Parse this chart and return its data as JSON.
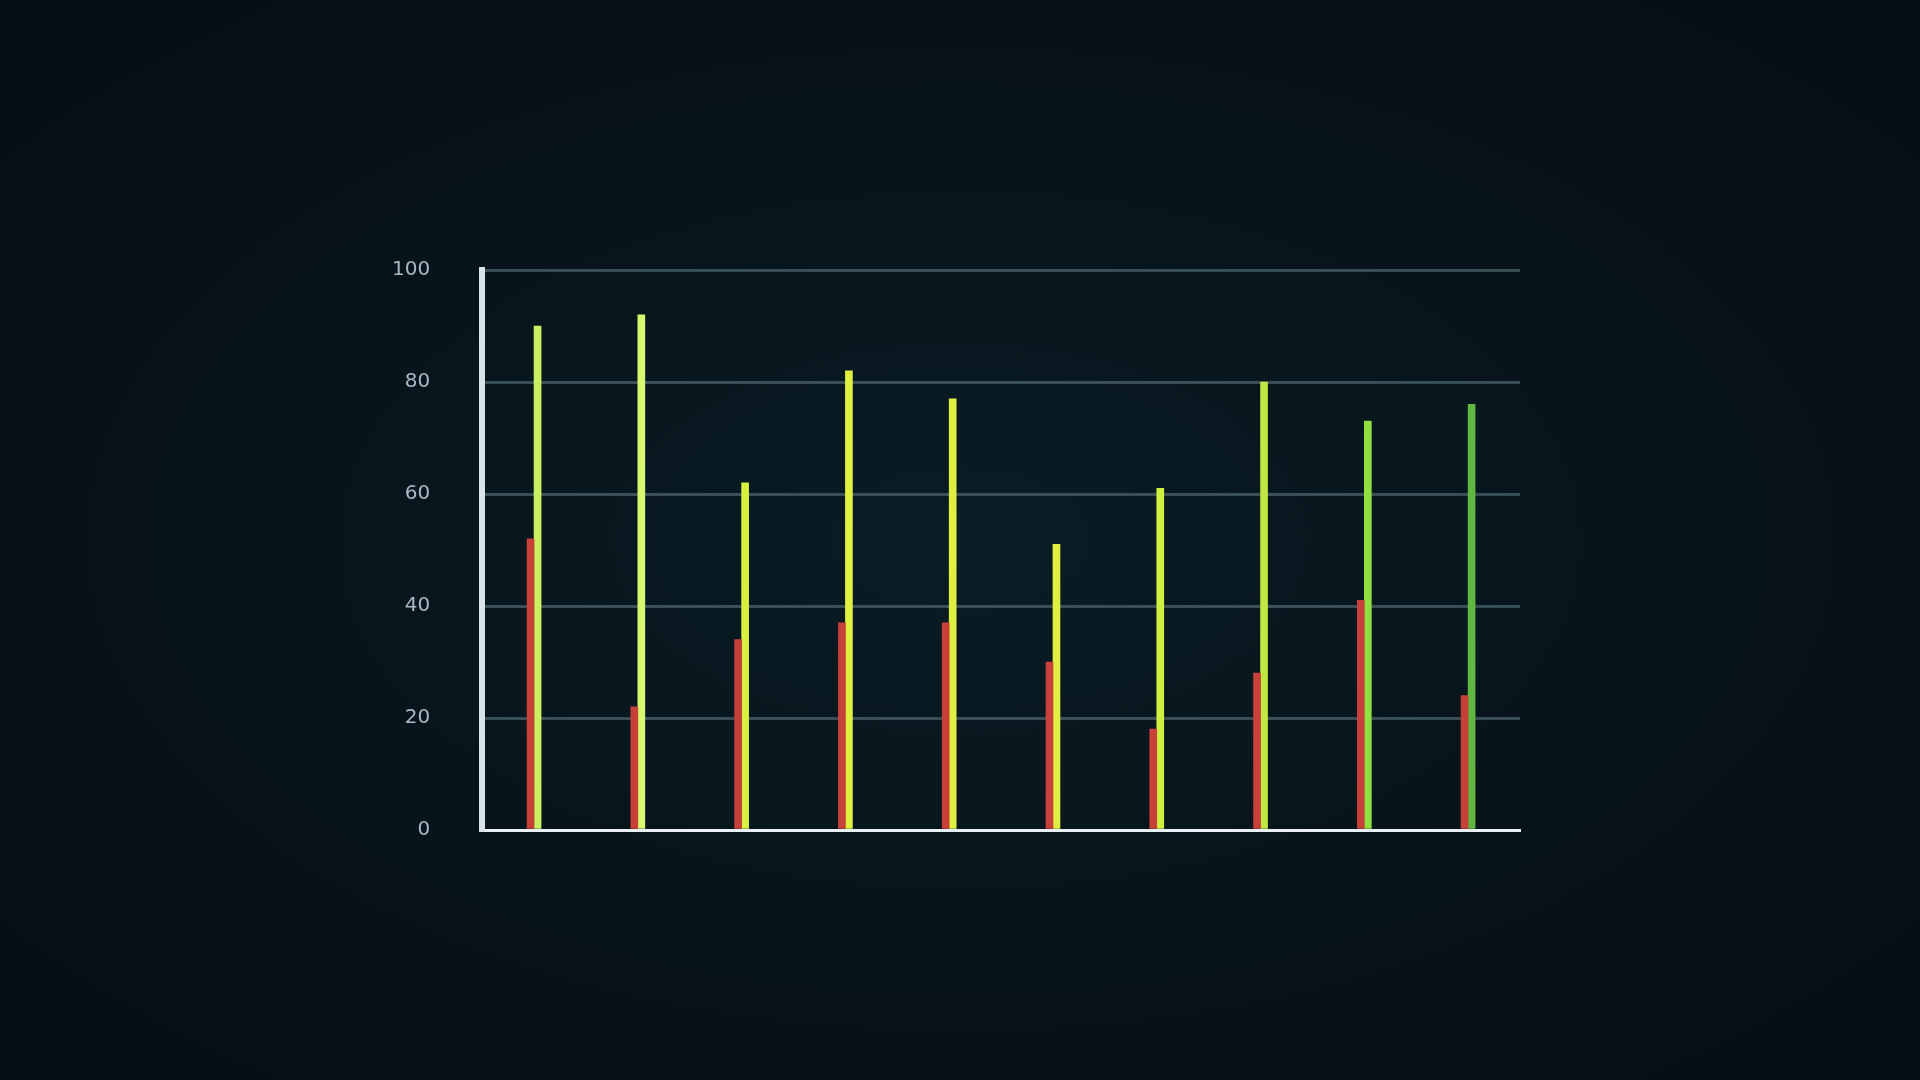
{
  "chart_data": {
    "type": "bar",
    "categories": [
      null,
      null,
      null,
      null,
      null,
      null,
      null,
      null,
      null,
      null
    ],
    "series": [
      {
        "color": "#c8403a",
        "values": [
          52,
          22,
          34,
          37,
          37,
          30,
          18,
          28,
          41,
          24
        ]
      },
      {
        "colors": [
          "#c8f060",
          "#d8f870",
          "#d8f040",
          "#e0f040",
          "#e0f040",
          "#e0f040",
          "#d0f040",
          "#c0e840",
          "#90e040",
          "#60b840"
        ],
        "values": [
          90,
          92,
          62,
          82,
          77,
          51,
          61,
          80,
          73,
          76
        ]
      }
    ],
    "ylim": [
      0,
      100
    ],
    "yticks": [
      0,
      20,
      40,
      60,
      80,
      100
    ],
    "grid": "y",
    "legend": false
  }
}
